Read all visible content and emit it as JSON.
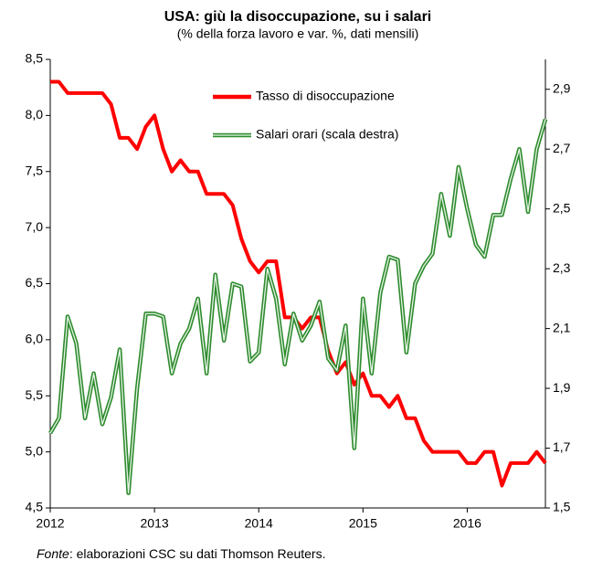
{
  "chart_data": {
    "type": "line",
    "title": "USA:  giù la disoccupazione, su i salari",
    "subtitle": "(% della forza lavoro e var. %, dati mensili)",
    "categories": [
      "2012",
      null,
      null,
      null,
      null,
      null,
      null,
      null,
      null,
      null,
      null,
      null,
      "2013",
      null,
      null,
      null,
      null,
      null,
      null,
      null,
      null,
      null,
      null,
      null,
      "2014",
      null,
      null,
      null,
      null,
      null,
      null,
      null,
      null,
      null,
      null,
      null,
      "2015",
      null,
      null,
      null,
      null,
      null,
      null,
      null,
      null,
      null,
      null,
      null,
      "2016",
      null,
      null,
      null,
      null,
      null,
      null,
      null,
      null,
      null
    ],
    "series": [
      {
        "name": "Tasso di disoccupazione",
        "color": "#ff0000",
        "values": [
          8.3,
          8.3,
          8.2,
          8.2,
          8.2,
          8.2,
          8.2,
          8.1,
          7.8,
          7.8,
          7.7,
          7.9,
          8.0,
          7.7,
          7.5,
          7.6,
          7.5,
          7.5,
          7.3,
          7.3,
          7.3,
          7.2,
          6.9,
          6.7,
          6.6,
          6.7,
          6.7,
          6.2,
          6.2,
          6.1,
          6.2,
          6.2,
          5.9,
          5.7,
          5.8,
          5.6,
          5.7,
          5.5,
          5.5,
          5.4,
          5.5,
          5.3,
          5.3,
          5.1,
          5.0,
          5.0,
          5.0,
          5.0,
          4.9,
          4.9,
          5.0,
          5.0,
          4.7,
          4.9,
          4.9,
          4.9,
          5.0,
          4.9
        ]
      },
      {
        "name": "Salari orari (scala destra)",
        "color": "#2e8b2e",
        "axis": "y2",
        "values": [
          1.75,
          1.8,
          2.14,
          2.05,
          1.8,
          1.95,
          1.78,
          1.87,
          2.03,
          1.55,
          1.9,
          2.15,
          2.15,
          2.14,
          1.95,
          2.05,
          2.1,
          2.2,
          1.95,
          2.28,
          2.06,
          2.25,
          2.24,
          1.99,
          2.02,
          2.3,
          2.2,
          1.98,
          2.15,
          2.06,
          2.11,
          2.19,
          2.0,
          1.96,
          2.11,
          1.7,
          2.2,
          1.95,
          2.22,
          2.34,
          2.33,
          2.02,
          2.25,
          2.31,
          2.35,
          2.55,
          2.41,
          2.64,
          2.5,
          2.38,
          2.34,
          2.48,
          2.48,
          2.6,
          2.7,
          2.49,
          2.7,
          2.8
        ]
      }
    ],
    "ylim": [
      4.5,
      8.5
    ],
    "yticks": [
      {
        "value": 4.5,
        "label": "4,5"
      },
      {
        "value": 5.0,
        "label": "5,0"
      },
      {
        "value": 5.5,
        "label": "5,5"
      },
      {
        "value": 6.0,
        "label": "6,0"
      },
      {
        "value": 6.5,
        "label": "6,5"
      },
      {
        "value": 7.0,
        "label": "7,0"
      },
      {
        "value": 7.5,
        "label": "7,5"
      },
      {
        "value": 8.0,
        "label": "8,0"
      },
      {
        "value": 8.5,
        "label": "8,5"
      }
    ],
    "y2lim": [
      1.5,
      3.0
    ],
    "y2ticks": [
      {
        "value": 1.5,
        "label": "1,5"
      },
      {
        "value": 1.7,
        "label": "1,7"
      },
      {
        "value": 1.9,
        "label": "1,9"
      },
      {
        "value": 2.1,
        "label": "2,1"
      },
      {
        "value": 2.3,
        "label": "2,3"
      },
      {
        "value": 2.5,
        "label": "2,5"
      },
      {
        "value": 2.7,
        "label": "2,7"
      },
      {
        "value": 2.9,
        "label": "2,9"
      }
    ],
    "grid": false,
    "source": {
      "label": "Fonte",
      "text": ": elaborazioni CSC su dati Thomson Reuters."
    }
  }
}
